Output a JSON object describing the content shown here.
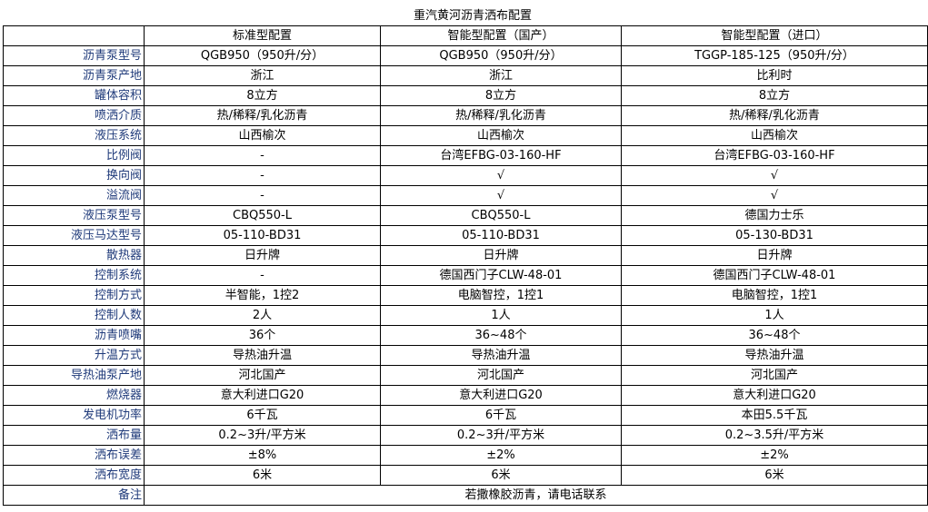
{
  "title": "重汽黄河沥青洒布配置",
  "colors": {
    "label": "#1f3a7a"
  },
  "header": [
    "",
    "标准型配置",
    "智能型配置（国产）",
    "智能型配置（进口）"
  ],
  "rows": [
    {
      "label": "沥青泵型号",
      "values": [
        "QGB950（950升/分）",
        "QGB950（950升/分）",
        "TGGP-185-125（950升/分）"
      ]
    },
    {
      "label": "沥青泵产地",
      "values": [
        "浙江",
        "浙江",
        "比利时"
      ]
    },
    {
      "label": "罐体容积",
      "values": [
        "8立方",
        "8立方",
        "8立方"
      ]
    },
    {
      "label": "喷洒介质",
      "values": [
        "热/稀释/乳化沥青",
        "热/稀释/乳化沥青",
        "热/稀释/乳化沥青"
      ]
    },
    {
      "label": "液压系统",
      "values": [
        "山西榆次",
        "山西榆次",
        "山西榆次"
      ]
    },
    {
      "label": "比例阀",
      "values": [
        "-",
        "台湾EFBG-03-160-HF",
        "台湾EFBG-03-160-HF"
      ]
    },
    {
      "label": "换向阀",
      "values": [
        "-",
        "√",
        "√"
      ]
    },
    {
      "label": "溢流阀",
      "values": [
        "-",
        "√",
        "√"
      ]
    },
    {
      "label": "液压泵型号",
      "values": [
        "CBQ550-L",
        "CBQ550-L",
        "德国力士乐"
      ]
    },
    {
      "label": "液压马达型号",
      "values": [
        "05-110-BD31",
        "05-110-BD31",
        "05-130-BD31"
      ]
    },
    {
      "label": "散热器",
      "values": [
        "日升牌",
        "日升牌",
        "日升牌"
      ]
    },
    {
      "label": "控制系统",
      "values": [
        "-",
        "德国西门子CLW-48-01",
        "德国西门子CLW-48-01"
      ]
    },
    {
      "label": "控制方式",
      "values": [
        "半智能，1控2",
        "电脑智控，1控1",
        "电脑智控，1控1"
      ]
    },
    {
      "label": "控制人数",
      "values": [
        "2人",
        "1人",
        "1人"
      ]
    },
    {
      "label": "沥青喷嘴",
      "values": [
        "36个",
        "36~48个",
        "36~48个"
      ]
    },
    {
      "label": "升温方式",
      "values": [
        "导热油升温",
        "导热油升温",
        "导热油升温"
      ]
    },
    {
      "label": "导热油泵产地",
      "values": [
        "河北国产",
        "河北国产",
        "河北国产"
      ]
    },
    {
      "label": "燃烧器",
      "values": [
        "意大利进口G20",
        "意大利进口G20",
        "意大利进口G20"
      ]
    },
    {
      "label": "发电机功率",
      "values": [
        "6千瓦",
        "6千瓦",
        "本田5.5千瓦"
      ]
    },
    {
      "label": "洒布量",
      "values": [
        "0.2~3升/平方米",
        "0.2~3升/平方米",
        "0.2~3.5升/平方米"
      ]
    },
    {
      "label": "洒布误差",
      "values": [
        "±8%",
        "±2%",
        "±2%"
      ]
    },
    {
      "label": "洒布宽度",
      "values": [
        "6米",
        "6米",
        "6米"
      ]
    }
  ],
  "note": {
    "label": "备注",
    "value": "若撒橡胶沥青，请电话联系"
  }
}
